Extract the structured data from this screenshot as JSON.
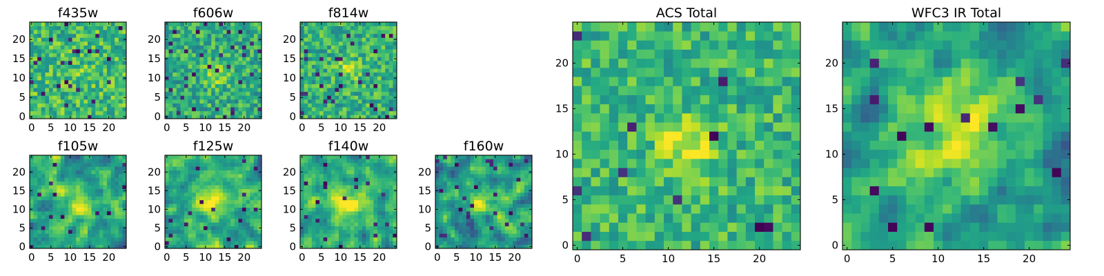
{
  "chart_data": [
    {
      "type": "heatmap",
      "title": "f435w",
      "grid_size": 25,
      "xlim": [
        0,
        24
      ],
      "ylim": [
        0,
        24
      ],
      "xticks": [
        0,
        5,
        10,
        15,
        20
      ],
      "yticks": [
        0,
        5,
        10,
        15,
        20
      ],
      "colormap": "viridis",
      "seed": 11,
      "noise": 0.42,
      "smooth": 0,
      "peak": 0.05,
      "peak_center": [
        12,
        12
      ],
      "peak_sigma": 3.0,
      "base": 0.68,
      "dark_rate": 0.04
    },
    {
      "type": "heatmap",
      "title": "f606w",
      "grid_size": 25,
      "xlim": [
        0,
        24
      ],
      "ylim": [
        0,
        24
      ],
      "xticks": [
        0,
        5,
        10,
        15,
        20
      ],
      "yticks": [
        0,
        5,
        10,
        15,
        20
      ],
      "colormap": "viridis",
      "seed": 23,
      "noise": 0.4,
      "smooth": 0,
      "peak": 0.28,
      "peak_center": [
        13,
        11
      ],
      "peak_sigma": 2.0,
      "base": 0.62,
      "dark_rate": 0.05
    },
    {
      "type": "heatmap",
      "title": "f814w",
      "grid_size": 25,
      "xlim": [
        0,
        24
      ],
      "ylim": [
        0,
        24
      ],
      "xticks": [
        0,
        5,
        10,
        15,
        20
      ],
      "yticks": [
        0,
        5,
        10,
        15,
        20
      ],
      "colormap": "viridis",
      "seed": 37,
      "noise": 0.4,
      "smooth": 0,
      "peak": 0.22,
      "peak_center": [
        12,
        12
      ],
      "peak_sigma": 2.2,
      "base": 0.64,
      "dark_rate": 0.04
    },
    {
      "type": "heatmap",
      "title": "f105w",
      "grid_size": 25,
      "xlim": [
        0,
        24
      ],
      "ylim": [
        0,
        24
      ],
      "xticks": [
        0,
        5,
        10,
        15,
        20
      ],
      "yticks": [
        0,
        5,
        10,
        15,
        20
      ],
      "colormap": "viridis",
      "seed": 41,
      "noise": 0.55,
      "smooth": 1,
      "peak": 0.38,
      "peak_center": [
        13,
        11
      ],
      "peak_sigma": 2.8,
      "base": 0.58,
      "dark_rate": 0.03
    },
    {
      "type": "heatmap",
      "title": "f125w",
      "grid_size": 25,
      "xlim": [
        0,
        24
      ],
      "ylim": [
        0,
        24
      ],
      "xticks": [
        0,
        5,
        10,
        15,
        20
      ],
      "yticks": [
        0,
        5,
        10,
        15,
        20
      ],
      "colormap": "viridis",
      "seed": 53,
      "noise": 0.5,
      "smooth": 1,
      "peak": 0.3,
      "peak_center": [
        12,
        12
      ],
      "peak_sigma": 3.2,
      "base": 0.62,
      "dark_rate": 0.02
    },
    {
      "type": "heatmap",
      "title": "f140w",
      "grid_size": 25,
      "xlim": [
        0,
        24
      ],
      "ylim": [
        0,
        24
      ],
      "xticks": [
        0,
        5,
        10,
        15,
        20
      ],
      "yticks": [
        0,
        5,
        10,
        15,
        20
      ],
      "colormap": "viridis",
      "seed": 67,
      "noise": 0.5,
      "smooth": 1,
      "peak": 0.3,
      "peak_center": [
        12,
        12
      ],
      "peak_sigma": 3.0,
      "base": 0.62,
      "dark_rate": 0.02
    },
    {
      "type": "heatmap",
      "title": "f160w",
      "grid_size": 25,
      "xlim": [
        0,
        24
      ],
      "ylim": [
        0,
        24
      ],
      "xticks": [
        0,
        5,
        10,
        15,
        20
      ],
      "yticks": [
        0,
        5,
        10,
        15,
        20
      ],
      "colormap": "viridis",
      "seed": 79,
      "noise": 0.6,
      "smooth": 1,
      "peak": 0.4,
      "peak_center": [
        12,
        12
      ],
      "peak_sigma": 2.4,
      "base": 0.55,
      "dark_rate": 0.04
    },
    {
      "type": "heatmap",
      "title": "ACS Total",
      "grid_size": 25,
      "xlim": [
        0,
        24
      ],
      "ylim": [
        0,
        24
      ],
      "xticks": [
        0,
        5,
        10,
        15,
        20
      ],
      "yticks": [
        0,
        5,
        10,
        15,
        20
      ],
      "colormap": "viridis",
      "seed": 97,
      "noise": 0.36,
      "smooth": 0,
      "peak": 0.3,
      "peak_center": [
        12,
        11
      ],
      "peak_sigma": 2.2,
      "base": 0.66,
      "dark_rate": 0.02
    },
    {
      "type": "heatmap",
      "title": "WFC3 IR Total",
      "grid_size": 25,
      "xlim": [
        0,
        24
      ],
      "ylim": [
        0,
        24
      ],
      "xticks": [
        0,
        5,
        10,
        15,
        20
      ],
      "yticks": [
        0,
        5,
        10,
        15,
        20
      ],
      "colormap": "viridis",
      "seed": 113,
      "noise": 0.5,
      "smooth": 1,
      "peak": 0.4,
      "peak_center": [
        12,
        12
      ],
      "peak_sigma": 3.6,
      "base": 0.58,
      "dark_rate": 0.03
    }
  ]
}
